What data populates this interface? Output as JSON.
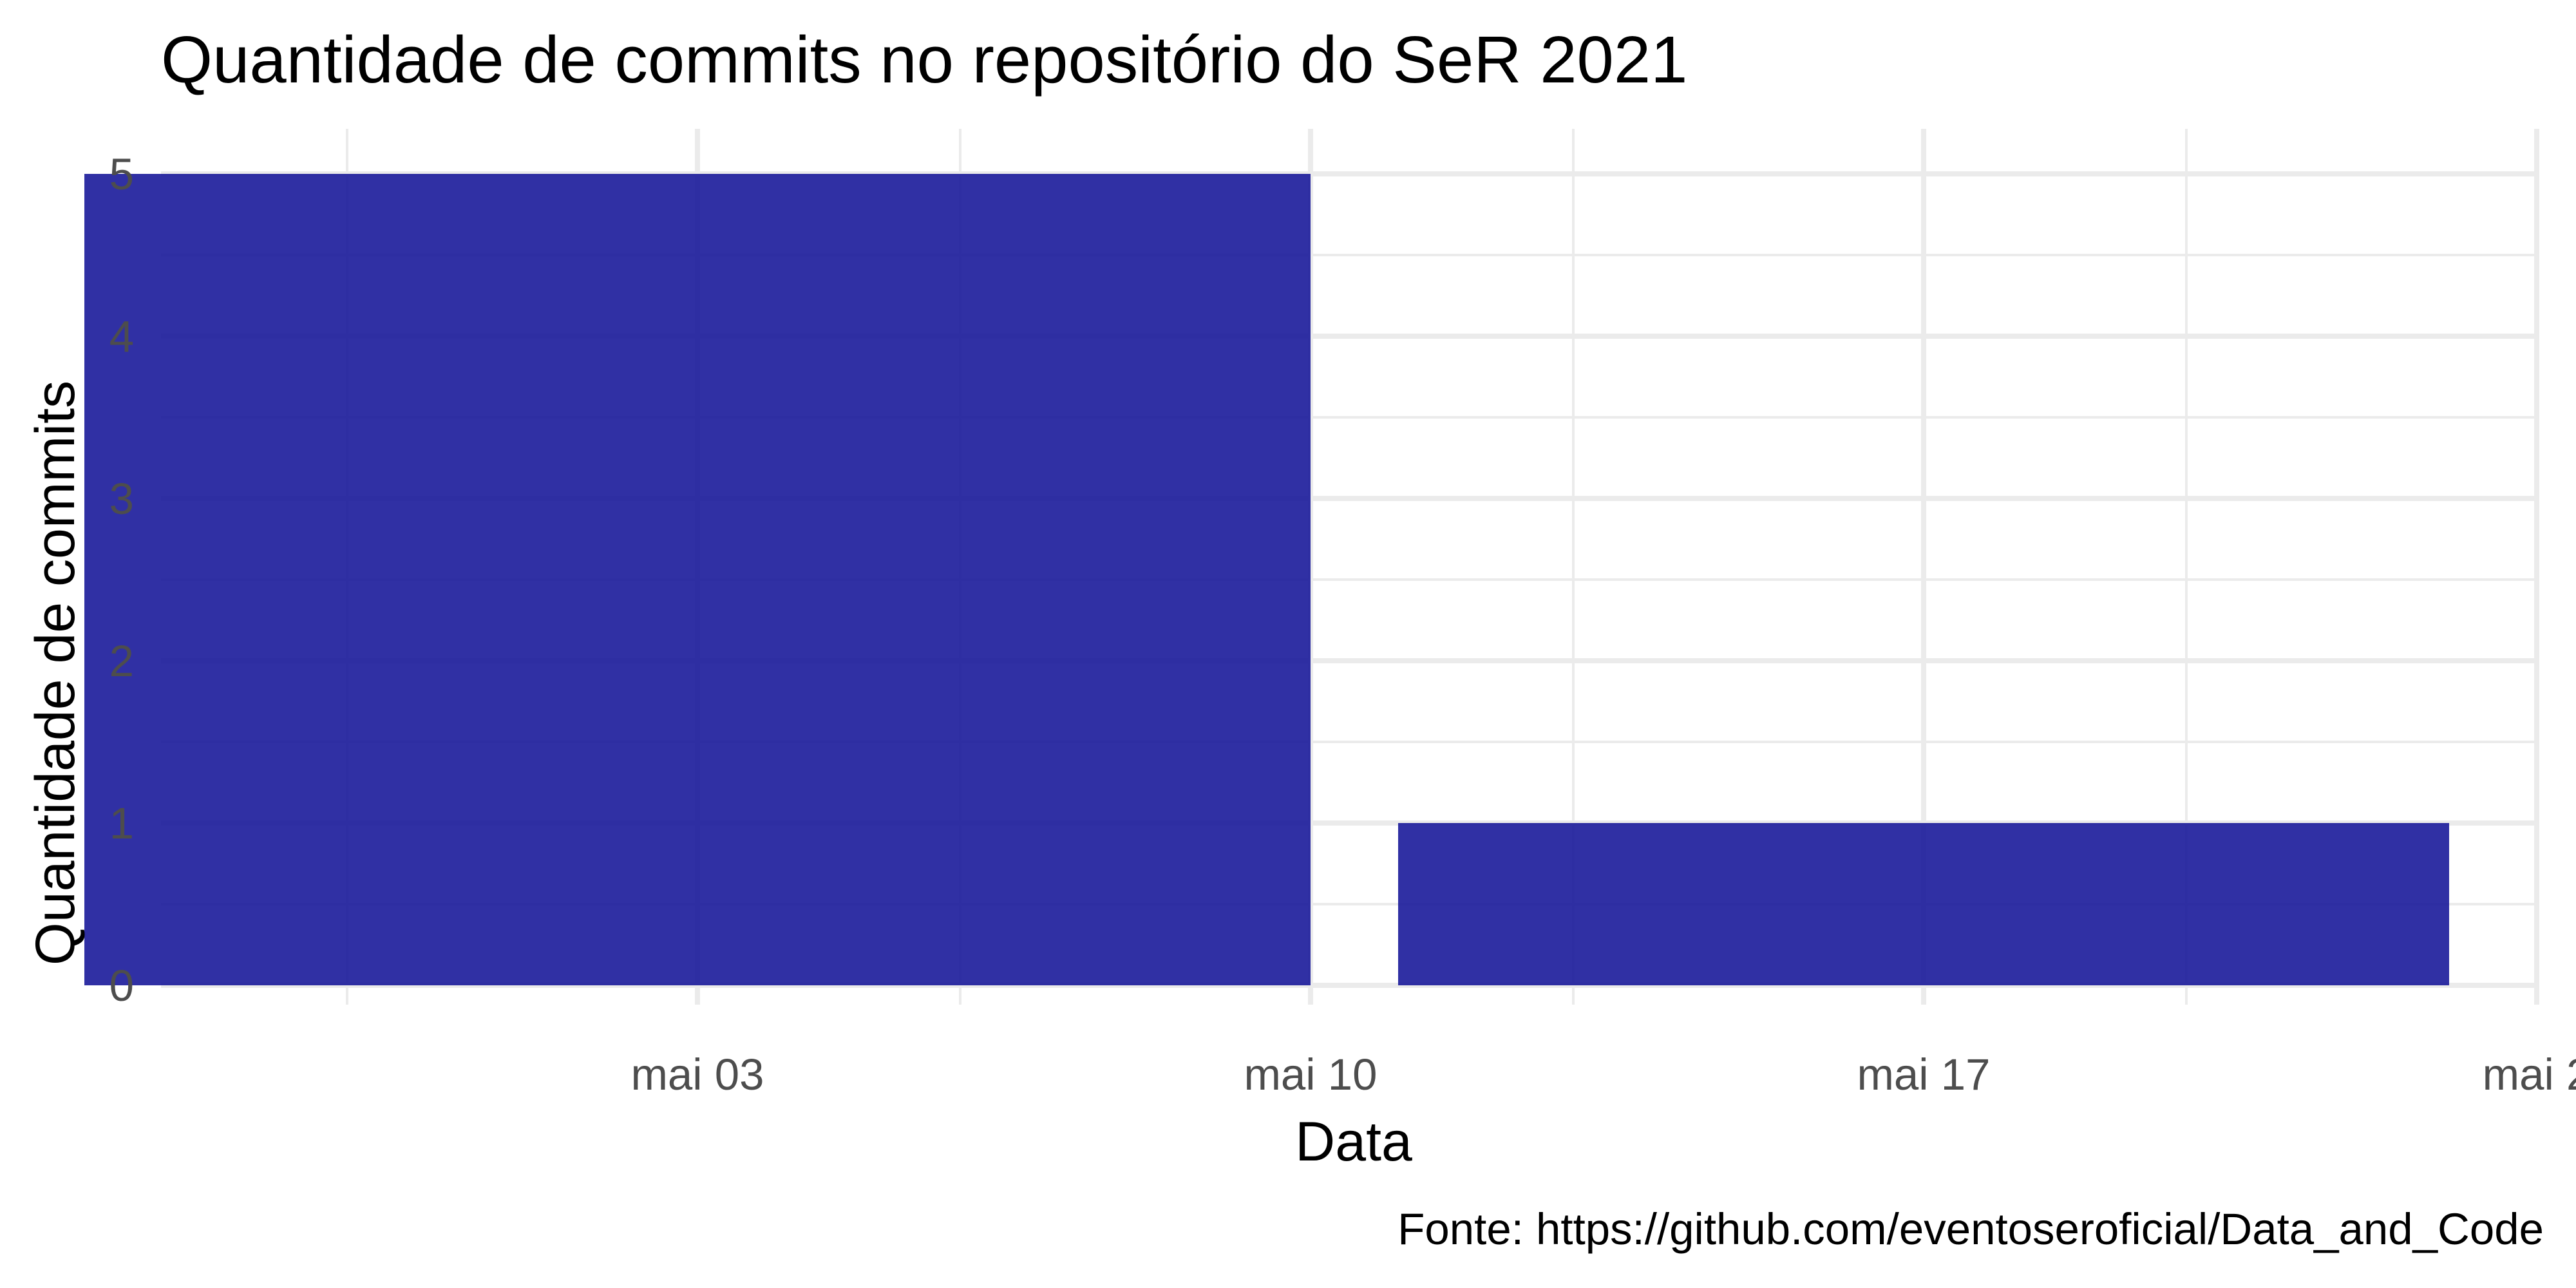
{
  "chart_data": {
    "type": "bar",
    "title": "Quantidade de commits no repositório do SeR 2021",
    "xlabel": "Data",
    "ylabel": "Quantidade de commits",
    "caption": "Fonte: https://github.com/eventoseroficial/Data_and_Code",
    "x_axis": {
      "type": "date",
      "range": [
        "2021-04-24",
        "2021-05-23"
      ],
      "ticks": [
        {
          "date": "2021-05-03",
          "label": "mai 03"
        },
        {
          "date": "2021-05-10",
          "label": "mai 10"
        },
        {
          "date": "2021-05-17",
          "label": "mai 17"
        },
        {
          "date": "2021-05-24",
          "label": "mai 2"
        }
      ],
      "minor_gridlines": [
        "2021-04-29",
        "2021-05-06",
        "2021-05-13",
        "2021-05-20"
      ]
    },
    "y_axis": {
      "ylim": [
        0,
        5
      ],
      "ticks": [
        0,
        1,
        2,
        3,
        4,
        5
      ]
    },
    "bins": [
      {
        "start": "2021-04-26",
        "end": "2021-05-10",
        "value": 5
      },
      {
        "start": "2021-05-11",
        "end": "2021-05-23",
        "value": 1
      }
    ],
    "bar_color": "#1a1a9a",
    "bar_opacity": 0.9,
    "grid": true,
    "grid_color": "#ebebeb",
    "background": "#ffffff",
    "legend": "none"
  }
}
